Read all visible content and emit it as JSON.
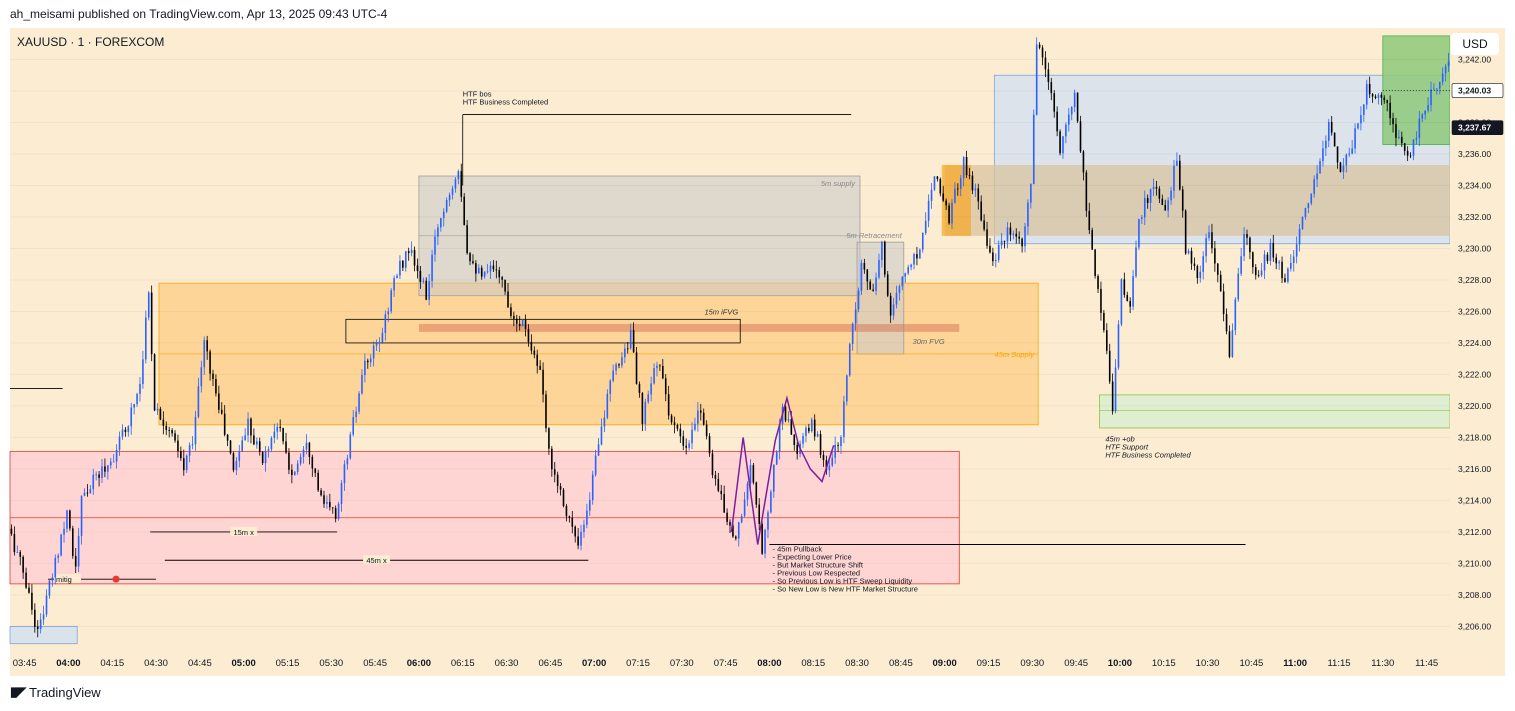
{
  "header": {
    "published_by": "ah_meisami published on TradingView.com, Apr 13, 2025 09:43 UTC-4",
    "symbol": "XAUUSD · 1 · FOREXCOM",
    "currency_button": "USD"
  },
  "footer": {
    "brand": "TradingView"
  },
  "colors": {
    "background": "#fbecd2",
    "bull": "#2962ff",
    "bear": "#000000",
    "supply_box": "#c8c8c8",
    "orange_zone": "#ffcc80",
    "red_zone": "#ffcdd2",
    "blue_zone": "#d6e2ee",
    "green_zone": "#dbeed0",
    "target_box": "#8ec97a"
  },
  "chart_data": {
    "type": "candlestick",
    "symbol": "XAUUSD",
    "interval": "1",
    "ylim": [
      3204.5,
      3244
    ],
    "y_ticks": [
      3206,
      3208,
      3210,
      3212,
      3214,
      3216,
      3218,
      3220,
      3222,
      3224,
      3226,
      3228,
      3230,
      3232,
      3234,
      3236,
      3238,
      3240,
      3242
    ],
    "y_tick_labels": [
      "3,206.00",
      "3,208.00",
      "3,210.00",
      "3,212.00",
      "3,214.00",
      "3,216.00",
      "3,218.00",
      "3,220.00",
      "3,222.00",
      "3,224.00",
      "3,226.00",
      "3,228.00",
      "3,230.00",
      "3,232.00",
      "3,234.00",
      "3,236.00",
      "3,238.00",
      "3,240.00",
      "3,242.00"
    ],
    "x_range": [
      "03:40",
      "11:53"
    ],
    "x_tick_labels": [
      "03:45",
      "04:00",
      "04:15",
      "04:30",
      "04:45",
      "05:00",
      "05:15",
      "05:30",
      "05:45",
      "06:00",
      "06:15",
      "06:30",
      "06:45",
      "07:00",
      "07:15",
      "07:30",
      "07:45",
      "08:00",
      "08:15",
      "08:30",
      "08:45",
      "09:00",
      "09:15",
      "09:30",
      "09:45",
      "10:00",
      "10:15",
      "10:30",
      "10:45",
      "11:00",
      "11:15",
      "11:30",
      "11:45"
    ],
    "bold_x_ticks": [
      "04:00",
      "05:00",
      "06:00",
      "07:00",
      "08:00",
      "09:00",
      "10:00",
      "11:00"
    ],
    "path_anchors": [
      [
        "03:40",
        3212.2
      ],
      [
        "03:45",
        3209.5
      ],
      [
        "03:50",
        3205.6
      ],
      [
        "03:55",
        3209.2
      ],
      [
        "04:00",
        3213.5
      ],
      [
        "04:03",
        3209.5
      ],
      [
        "04:05",
        3214.0
      ],
      [
        "04:10",
        3215.5
      ],
      [
        "04:15",
        3216.5
      ],
      [
        "04:20",
        3218.5
      ],
      [
        "04:25",
        3221.5
      ],
      [
        "04:28",
        3227.2
      ],
      [
        "04:30",
        3220.0
      ],
      [
        "04:35",
        3218.5
      ],
      [
        "04:40",
        3216.0
      ],
      [
        "04:43",
        3218.0
      ],
      [
        "04:47",
        3224.0
      ],
      [
        "04:52",
        3220.0
      ],
      [
        "04:57",
        3216.0
      ],
      [
        "05:02",
        3219.0
      ],
      [
        "05:07",
        3216.5
      ],
      [
        "05:12",
        3219.0
      ],
      [
        "05:17",
        3215.5
      ],
      [
        "05:22",
        3218.0
      ],
      [
        "05:27",
        3214.0
      ],
      [
        "05:32",
        3213.0
      ],
      [
        "05:37",
        3218.0
      ],
      [
        "05:42",
        3222.5
      ],
      [
        "05:47",
        3224.0
      ],
      [
        "05:52",
        3228.0
      ],
      [
        "05:57",
        3230.0
      ],
      [
        "06:03",
        3227.0
      ],
      [
        "06:07",
        3231.5
      ],
      [
        "06:14",
        3235.3
      ],
      [
        "06:17",
        3230.0
      ],
      [
        "06:22",
        3228.0
      ],
      [
        "06:27",
        3229.0
      ],
      [
        "06:32",
        3226.0
      ],
      [
        "06:37",
        3225.0
      ],
      [
        "06:42",
        3222.0
      ],
      [
        "06:45",
        3217.0
      ],
      [
        "06:50",
        3214.0
      ],
      [
        "06:55",
        3211.0
      ],
      [
        "06:58",
        3213.0
      ],
      [
        "07:02",
        3218.0
      ],
      [
        "07:07",
        3222.0
      ],
      [
        "07:13",
        3224.5
      ],
      [
        "07:17",
        3219.0
      ],
      [
        "07:22",
        3223.0
      ],
      [
        "07:27",
        3219.0
      ],
      [
        "07:32",
        3217.0
      ],
      [
        "07:37",
        3220.0
      ],
      [
        "07:41",
        3216.0
      ],
      [
        "07:44",
        3214.0
      ],
      [
        "07:49",
        3211.5
      ],
      [
        "07:54",
        3216.0
      ],
      [
        "07:58",
        3211.0
      ],
      [
        "08:02",
        3216.0
      ],
      [
        "08:05",
        3220.0
      ],
      [
        "08:10",
        3217.0
      ],
      [
        "08:15",
        3219.0
      ],
      [
        "08:20",
        3216.0
      ],
      [
        "08:25",
        3218.0
      ],
      [
        "08:28",
        3224.0
      ],
      [
        "08:32",
        3229.0
      ],
      [
        "08:36",
        3227.0
      ],
      [
        "08:39",
        3230.0
      ],
      [
        "08:42",
        3226.0
      ],
      [
        "08:47",
        3228.5
      ],
      [
        "08:52",
        3230.0
      ],
      [
        "08:57",
        3235.0
      ],
      [
        "09:02",
        3232.0
      ],
      [
        "09:07",
        3235.5
      ],
      [
        "09:12",
        3233.0
      ],
      [
        "09:17",
        3229.0
      ],
      [
        "09:22",
        3231.0
      ],
      [
        "09:27",
        3230.0
      ],
      [
        "09:30",
        3234.0
      ],
      [
        "09:32",
        3243.0
      ],
      [
        "09:37",
        3240.0
      ],
      [
        "09:40",
        3236.0
      ],
      [
        "09:45",
        3240.0
      ],
      [
        "09:50",
        3231.0
      ],
      [
        "09:55",
        3225.0
      ],
      [
        "09:58",
        3220.0
      ],
      [
        "10:01",
        3228.0
      ],
      [
        "10:04",
        3226.0
      ],
      [
        "10:07",
        3232.0
      ],
      [
        "10:12",
        3234.0
      ],
      [
        "10:16",
        3232.0
      ],
      [
        "10:20",
        3236.0
      ],
      [
        "10:23",
        3230.0
      ],
      [
        "10:27",
        3228.0
      ],
      [
        "10:31",
        3231.0
      ],
      [
        "10:35",
        3227.0
      ],
      [
        "10:38",
        3223.5
      ],
      [
        "10:43",
        3231.0
      ],
      [
        "10:47",
        3228.0
      ],
      [
        "10:52",
        3230.0
      ],
      [
        "10:57",
        3228.0
      ],
      [
        "11:02",
        3231.0
      ],
      [
        "11:07",
        3234.0
      ],
      [
        "11:12",
        3238.0
      ],
      [
        "11:16",
        3235.0
      ],
      [
        "11:20",
        3236.5
      ],
      [
        "11:25",
        3240.0
      ],
      [
        "11:30",
        3240.0
      ],
      [
        "11:35",
        3237.0
      ],
      [
        "11:40",
        3236.0
      ],
      [
        "11:45",
        3239.0
      ],
      [
        "11:48",
        3240.0
      ],
      [
        "11:52",
        3241.8
      ]
    ],
    "last_price_label": "3,240.03",
    "current_price_label": "3,237.67",
    "last_price": 3240.03,
    "current_price": 3237.67,
    "zones": [
      {
        "label": "5m supply",
        "t1": "06:00",
        "t2": "08:31",
        "top": 3234.6,
        "bottom": 3227.0
      },
      {
        "label": "5m Retracement",
        "t1": "08:30",
        "t2": "08:46",
        "top": 3230.4,
        "bottom": 3223.3
      },
      {
        "label": "45m Supply",
        "t1": "04:31",
        "t2": "09:32",
        "top": 3227.8,
        "bottom": 3218.8
      },
      {
        "label": "30m FVG",
        "t1": "06:00",
        "t2": "09:05",
        "top": 3225.2,
        "bottom": 3224.7
      },
      {
        "label": "15m iFVG",
        "t1": "05:35",
        "t2": "07:50",
        "top": 3225.5,
        "bottom": 3224.0
      },
      {
        "label": "",
        "t1": "03:40",
        "t2": "09:05",
        "top": 3217.1,
        "bottom": 3208.7
      },
      {
        "label": "45m +ob",
        "t1": "09:53",
        "t2": "11:53",
        "top": 3220.7,
        "bottom": 3218.6
      },
      {
        "label": "",
        "t1": "09:17",
        "t2": "11:53",
        "top": 3241.0,
        "bottom": 3230.3
      },
      {
        "label": "",
        "t1": "09:00",
        "t2": "11:53",
        "top": 3235.3,
        "bottom": 3230.8
      },
      {
        "label": "",
        "t1": "08:59",
        "t2": "09:09",
        "top": 3235.3,
        "bottom": 3230.8
      },
      {
        "label": "",
        "t1": "03:40",
        "t2": "04:03",
        "top": 3206.0,
        "bottom": 3204.9
      },
      {
        "label": "",
        "t1": "11:30",
        "t2": "11:53",
        "top": 3243.5,
        "bottom": 3236.6
      }
    ],
    "levels": [
      {
        "label": "15m x",
        "t1": "04:28",
        "t2": "05:32",
        "price": 3212.0
      },
      {
        "label": "45m x",
        "t1": "04:33",
        "t2": "06:58",
        "price": 3210.2
      },
      {
        "label": "mitig",
        "t1": "03:53",
        "t2": "04:30",
        "price": 3209.0
      },
      {
        "label": "",
        "t1": "08:00",
        "t2": "10:43",
        "price": 3211.2
      },
      {
        "label": "",
        "t1": "03:40",
        "t2": "03:58",
        "price": 3221.1
      },
      {
        "label": "",
        "t1": "06:15",
        "t2": "08:28",
        "price": 3238.5
      }
    ],
    "annotations": [
      {
        "lines": [
          "HTF bos",
          "HTF Business Completed"
        ],
        "t": "06:15",
        "price": 3239.4
      },
      {
        "lines": [
          "45m +ob",
          "HTF Support",
          "HTF Business Completed"
        ],
        "t": "09:55",
        "price": 3218.0
      },
      {
        "lines": [
          "- 45m Pullback",
          "- Expecting Lower Price",
          "- But Market Structure Shift",
          "- Previous Low Respected",
          "- So Previous Low is HTF Sweep Liquidity",
          "- So New Low is New HTF Market Structure"
        ],
        "t": "07:59",
        "price": 3211.0
      }
    ]
  }
}
